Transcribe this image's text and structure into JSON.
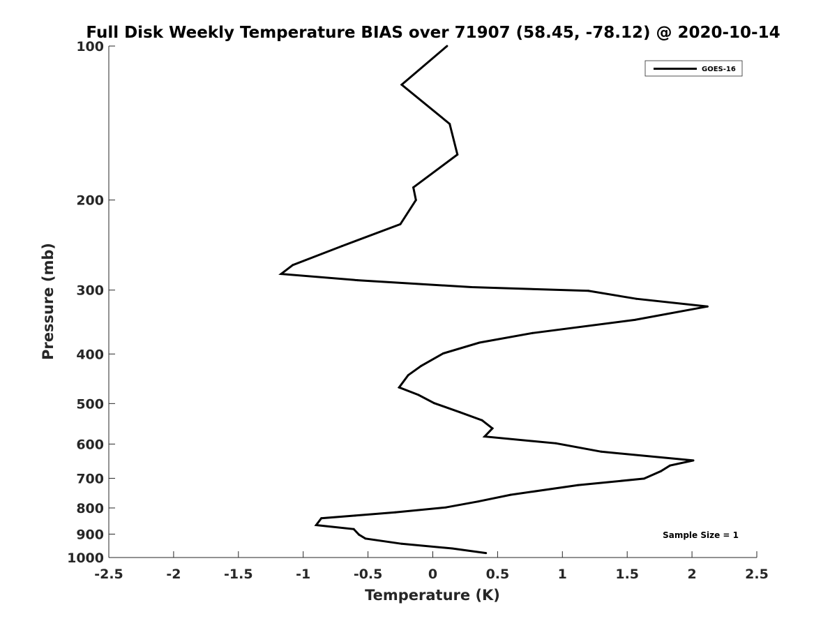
{
  "chart_data": {
    "type": "line",
    "title": "Full Disk Weekly Temperature BIAS over 71907 (58.45, -78.12) @ 2020-10-14",
    "xlabel": "Temperature (K)",
    "ylabel": "Pressure (mb)",
    "xlim": [
      -2.5,
      2.5
    ],
    "ylim": [
      100,
      1000
    ],
    "y_scale": "log",
    "y_reversed": true,
    "grid": false,
    "legend_position": "top-right",
    "x_ticks": [
      -2.5,
      -2,
      -1.5,
      -1,
      -0.5,
      0,
      0.5,
      1,
      1.5,
      2,
      2.5
    ],
    "x_tick_labels": [
      "-2.5",
      "-2",
      "-1.5",
      "-1",
      "-0.5",
      "0",
      "0.5",
      "1",
      "1.5",
      "2",
      "2.5"
    ],
    "y_ticks": [
      100,
      200,
      300,
      400,
      500,
      600,
      700,
      800,
      900,
      1000
    ],
    "y_tick_labels": [
      "100",
      "200",
      "300",
      "400",
      "500",
      "600",
      "700",
      "800",
      "900",
      "1000"
    ],
    "series": [
      {
        "name": "GOES-16",
        "color": "#000000",
        "points": [
          {
            "x": 0.11,
            "y": 100
          },
          {
            "x": -0.24,
            "y": 119
          },
          {
            "x": 0.13,
            "y": 142
          },
          {
            "x": 0.19,
            "y": 163
          },
          {
            "x": -0.15,
            "y": 189
          },
          {
            "x": -0.13,
            "y": 200
          },
          {
            "x": -0.25,
            "y": 223
          },
          {
            "x": -0.7,
            "y": 246
          },
          {
            "x": -1.08,
            "y": 268
          },
          {
            "x": -1.17,
            "y": 279
          },
          {
            "x": -0.58,
            "y": 287
          },
          {
            "x": 0.3,
            "y": 296
          },
          {
            "x": 1.2,
            "y": 301
          },
          {
            "x": 1.57,
            "y": 312
          },
          {
            "x": 2.12,
            "y": 323
          },
          {
            "x": 1.56,
            "y": 343
          },
          {
            "x": 0.77,
            "y": 364
          },
          {
            "x": 0.36,
            "y": 380
          },
          {
            "x": 0.08,
            "y": 399
          },
          {
            "x": -0.09,
            "y": 422
          },
          {
            "x": -0.19,
            "y": 440
          },
          {
            "x": -0.26,
            "y": 465
          },
          {
            "x": -0.11,
            "y": 481
          },
          {
            "x": 0.01,
            "y": 499
          },
          {
            "x": 0.21,
            "y": 520
          },
          {
            "x": 0.38,
            "y": 539
          },
          {
            "x": 0.46,
            "y": 559
          },
          {
            "x": 0.4,
            "y": 580
          },
          {
            "x": 0.95,
            "y": 598
          },
          {
            "x": 1.3,
            "y": 621
          },
          {
            "x": 2.01,
            "y": 646
          },
          {
            "x": 1.83,
            "y": 661
          },
          {
            "x": 1.76,
            "y": 678
          },
          {
            "x": 1.63,
            "y": 701
          },
          {
            "x": 1.12,
            "y": 722
          },
          {
            "x": 0.6,
            "y": 754
          },
          {
            "x": 0.35,
            "y": 777
          },
          {
            "x": 0.1,
            "y": 798
          },
          {
            "x": -0.29,
            "y": 816
          },
          {
            "x": -0.6,
            "y": 828
          },
          {
            "x": -0.86,
            "y": 838
          },
          {
            "x": -0.9,
            "y": 864
          },
          {
            "x": -0.61,
            "y": 880
          },
          {
            "x": -0.57,
            "y": 902
          },
          {
            "x": -0.52,
            "y": 918
          },
          {
            "x": -0.24,
            "y": 940
          },
          {
            "x": 0.15,
            "y": 960
          },
          {
            "x": 0.41,
            "y": 980
          }
        ]
      }
    ],
    "legend_entries": [
      "GOES-16"
    ],
    "annotations": [
      "Sample Size = 1"
    ]
  }
}
